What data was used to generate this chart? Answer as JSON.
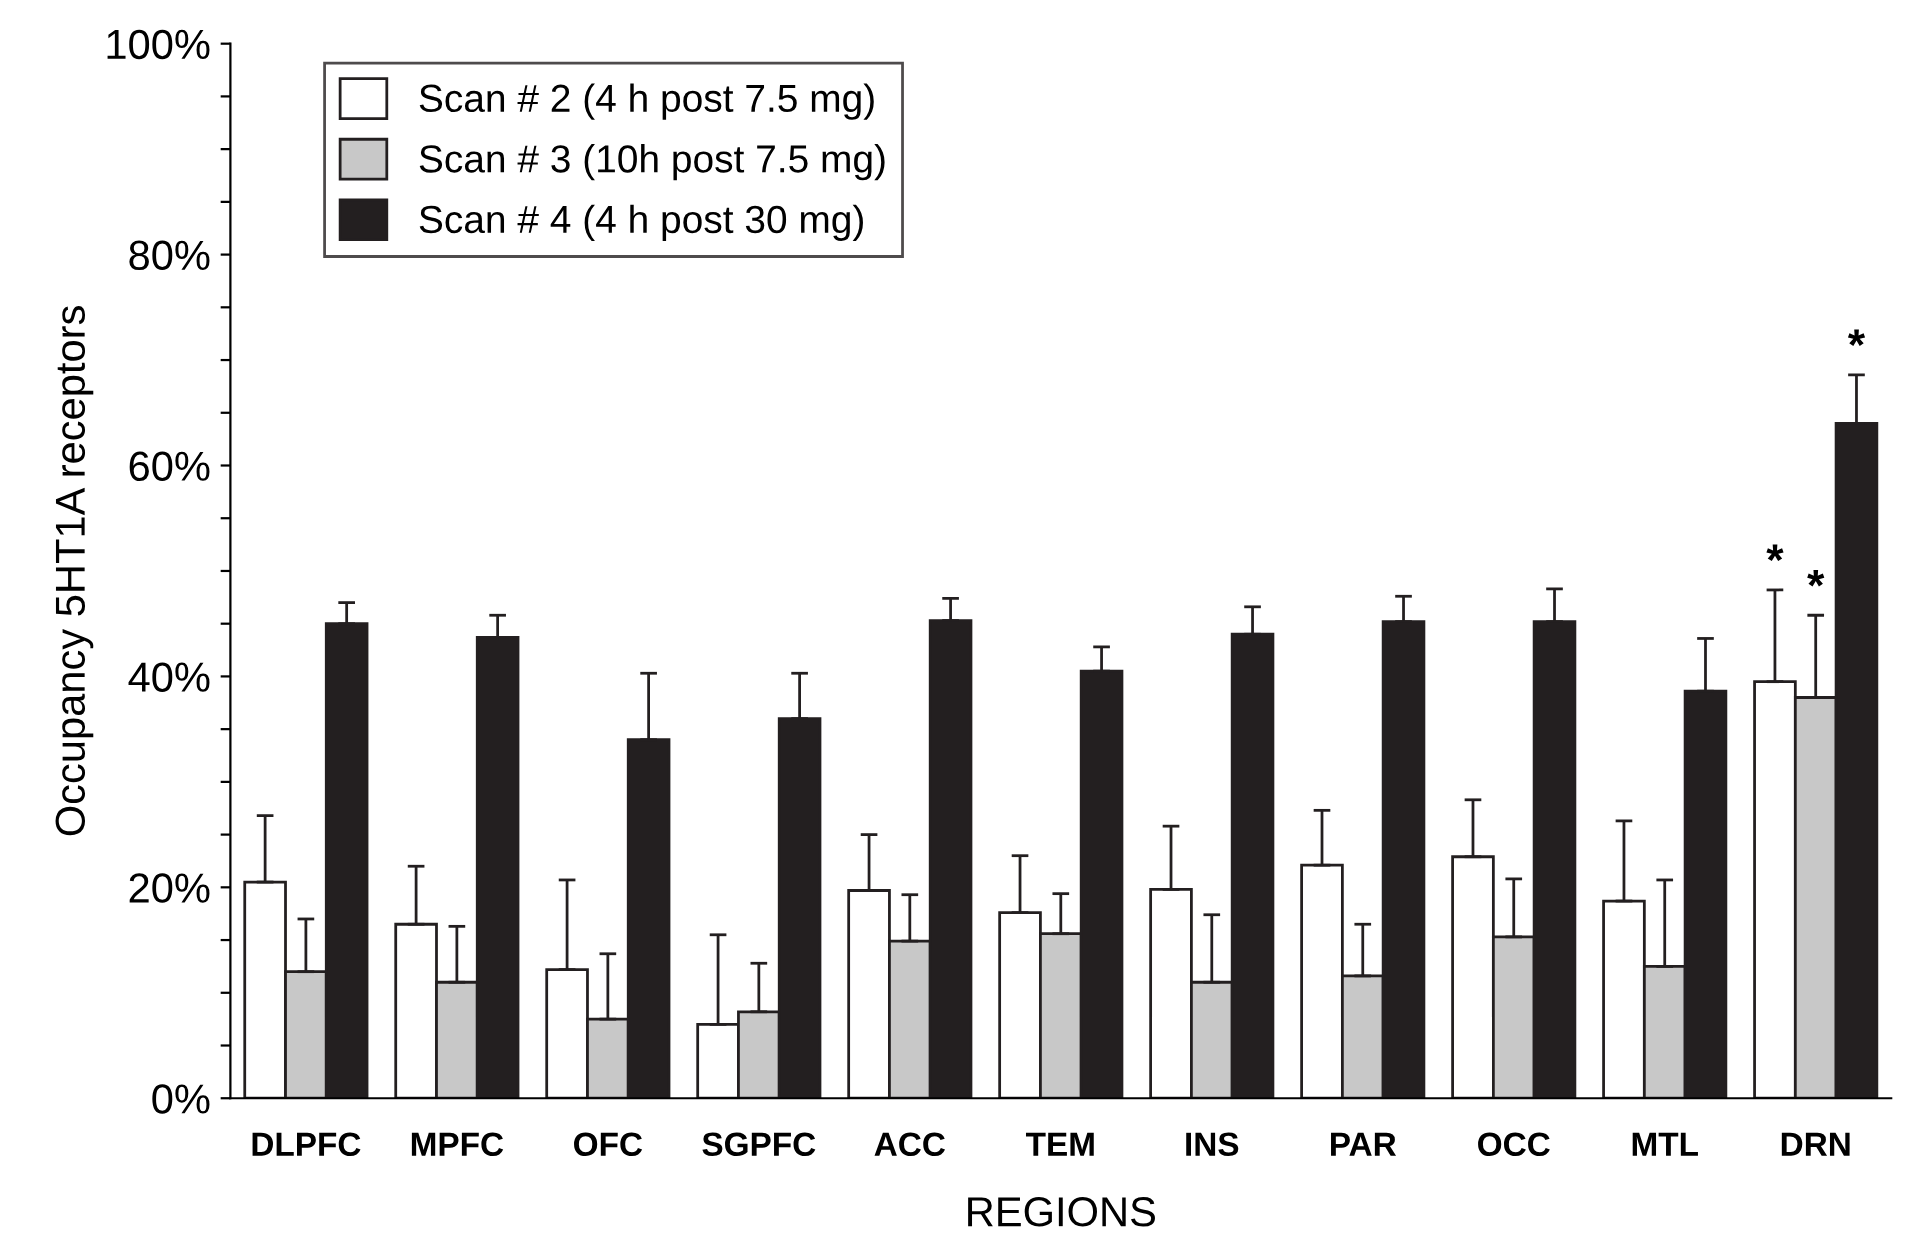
{
  "chart_data": {
    "type": "bar",
    "xlabel": "REGIONS",
    "ylabel": "Occupancy 5HT1A receptors",
    "categories": [
      "DLPFC",
      "MPFC",
      "OFC",
      "SGPFC",
      "ACC",
      "TEM",
      "INS",
      "PAR",
      "OCC",
      "MTL",
      "DRN"
    ],
    "series": [
      {
        "name": "Scan # 2 (4 h post 7.5 mg)",
        "color": "#ffffff",
        "values": [
          20.5,
          16.5,
          12.2,
          7,
          19.7,
          17.6,
          19.8,
          22.1,
          22.9,
          18.7,
          39.5
        ],
        "errors": [
          6.3,
          5.5,
          8.5,
          8.5,
          5.3,
          5.4,
          6,
          5.2,
          5.4,
          7.6,
          8.7
        ]
      },
      {
        "name": "Scan # 3 (10h post 7.5 mg)",
        "color": "#c8c8c8",
        "values": [
          12,
          11,
          7.5,
          8.2,
          14.9,
          15.6,
          11,
          11.6,
          15.3,
          12.5,
          38
        ],
        "errors": [
          5,
          5.3,
          6.2,
          4.6,
          4.4,
          3.8,
          6.4,
          4.9,
          5.5,
          8.2,
          7.8
        ]
      },
      {
        "name": "Scan # 4 (4 h post 30 mg)",
        "color": "#231f20",
        "values": [
          45,
          43.7,
          34,
          36,
          45.3,
          40.5,
          44,
          45.2,
          45.2,
          38.6,
          64
        ],
        "errors": [
          2,
          2.1,
          6.3,
          4.3,
          2.1,
          2.3,
          2.6,
          2.4,
          3.1,
          5,
          4.6
        ]
      }
    ],
    "ylim": [
      0,
      100
    ],
    "yticks": [
      {
        "value": 0,
        "label": "0%"
      },
      {
        "value": 5,
        "label": null
      },
      {
        "value": 10,
        "label": null
      },
      {
        "value": 15,
        "label": null
      },
      {
        "value": 20,
        "label": "20%"
      },
      {
        "value": 25,
        "label": null
      },
      {
        "value": 30,
        "label": null
      },
      {
        "value": 35,
        "label": null
      },
      {
        "value": 40,
        "label": "40%"
      },
      {
        "value": 45,
        "label": null
      },
      {
        "value": 50,
        "label": null
      },
      {
        "value": 55,
        "label": null
      },
      {
        "value": 60,
        "label": "60%"
      },
      {
        "value": 65,
        "label": null
      },
      {
        "value": 70,
        "label": null
      },
      {
        "value": 75,
        "label": null
      },
      {
        "value": 80,
        "label": "80%"
      },
      {
        "value": 85,
        "label": null
      },
      {
        "value": 90,
        "label": null
      },
      {
        "value": 95,
        "label": null
      },
      {
        "value": 100,
        "label": "100%"
      }
    ],
    "annotations": [
      "*",
      "*",
      "*"
    ],
    "legend": "top left",
    "grid": false
  }
}
